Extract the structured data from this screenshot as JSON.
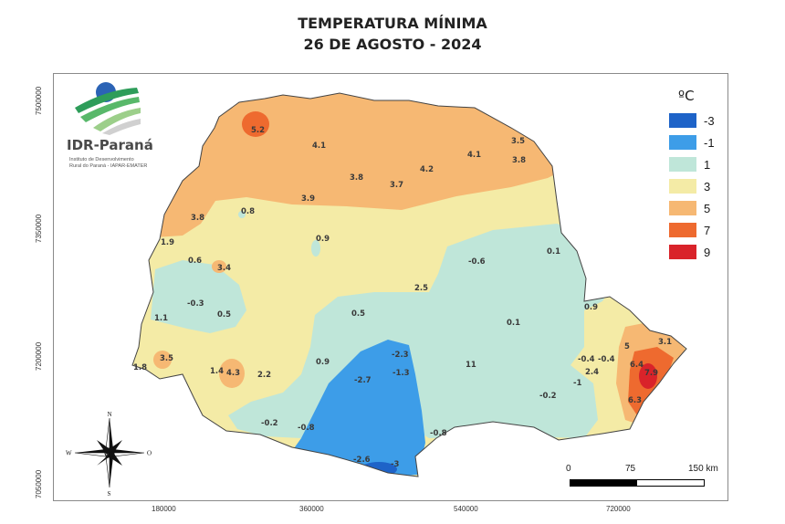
{
  "title": {
    "line1": "TEMPERATURA MÍNIMA",
    "line2": "26 DE AGOSTO - 2024"
  },
  "axes": {
    "y_ticks": [
      "7500000",
      "7350000",
      "7200000",
      "7050000"
    ],
    "x_ticks": [
      "180000",
      "360000",
      "540000",
      "720000"
    ]
  },
  "legend": {
    "title": "ºC",
    "items": [
      {
        "label": "-3",
        "color": "#1e63c8"
      },
      {
        "label": "-1",
        "color": "#3d9de8"
      },
      {
        "label": "1",
        "color": "#bfe6d9"
      },
      {
        "label": "3",
        "color": "#f4eba6"
      },
      {
        "label": "5",
        "color": "#f6b873"
      },
      {
        "label": "7",
        "color": "#ee6a2f"
      },
      {
        "label": "9",
        "color": "#d9232a"
      }
    ]
  },
  "logo": {
    "name": "IDR-Paraná",
    "subtitle_line1": "Instituto de Desenvolvimento",
    "subtitle_line2": "Rural do Paraná - IAPAR-EMATER"
  },
  "compass": {
    "n": "N",
    "s": "S",
    "e": "O",
    "w": "W"
  },
  "scale": {
    "label_0": "0",
    "label_mid": "75",
    "label_end": "150 km"
  },
  "station_values": [
    {
      "id": "v1",
      "label": "5.2"
    },
    {
      "id": "v2",
      "label": "4.1"
    },
    {
      "id": "v3",
      "label": "3.5"
    },
    {
      "id": "v4",
      "label": "4.1"
    },
    {
      "id": "v5",
      "label": "3.8"
    },
    {
      "id": "v6",
      "label": "4.2"
    },
    {
      "id": "v7",
      "label": "3.8"
    },
    {
      "id": "v8",
      "label": "3.7"
    },
    {
      "id": "v9",
      "label": "3.9"
    },
    {
      "id": "v10",
      "label": "3.8"
    },
    {
      "id": "v11",
      "label": "0.8"
    },
    {
      "id": "v12",
      "label": "1.9"
    },
    {
      "id": "v13",
      "label": "0.9"
    },
    {
      "id": "v14",
      "label": "0.1"
    },
    {
      "id": "v15",
      "label": "-0.6"
    },
    {
      "id": "v16",
      "label": "0.6"
    },
    {
      "id": "v17",
      "label": "3.4"
    },
    {
      "id": "v18",
      "label": "2.5"
    },
    {
      "id": "v19",
      "label": "-0.3"
    },
    {
      "id": "v20",
      "label": "0.5"
    },
    {
      "id": "v21",
      "label": "0.5"
    },
    {
      "id": "v22",
      "label": "0.9"
    },
    {
      "id": "v23",
      "label": "1.1"
    },
    {
      "id": "v24",
      "label": "0.1"
    },
    {
      "id": "v25",
      "label": "3.5"
    },
    {
      "id": "v26",
      "label": "1.8"
    },
    {
      "id": "v27",
      "label": "1.4"
    },
    {
      "id": "v28",
      "label": "4.3"
    },
    {
      "id": "v29",
      "label": "2.2"
    },
    {
      "id": "v30",
      "label": "0.9"
    },
    {
      "id": "v31",
      "label": "-2.3"
    },
    {
      "id": "v32",
      "label": "-1.3"
    },
    {
      "id": "v33",
      "label": "-2.7"
    },
    {
      "id": "v34",
      "label": "11"
    },
    {
      "id": "v35",
      "label": "-0.4"
    },
    {
      "id": "v36",
      "label": "-0.4"
    },
    {
      "id": "v37",
      "label": "2.4"
    },
    {
      "id": "v38",
      "label": "-1"
    },
    {
      "id": "v39",
      "label": "-0.2"
    },
    {
      "id": "v40",
      "label": "5"
    },
    {
      "id": "v41",
      "label": "3.1"
    },
    {
      "id": "v42",
      "label": "6.4"
    },
    {
      "id": "v43",
      "label": "7.9"
    },
    {
      "id": "v44",
      "label": "6.3"
    },
    {
      "id": "v45",
      "label": "-0.2"
    },
    {
      "id": "v46",
      "label": "-0.8"
    },
    {
      "id": "v47",
      "label": "-0.8"
    },
    {
      "id": "v48",
      "label": "-2.6"
    },
    {
      "id": "v49",
      "label": "-3"
    }
  ]
}
